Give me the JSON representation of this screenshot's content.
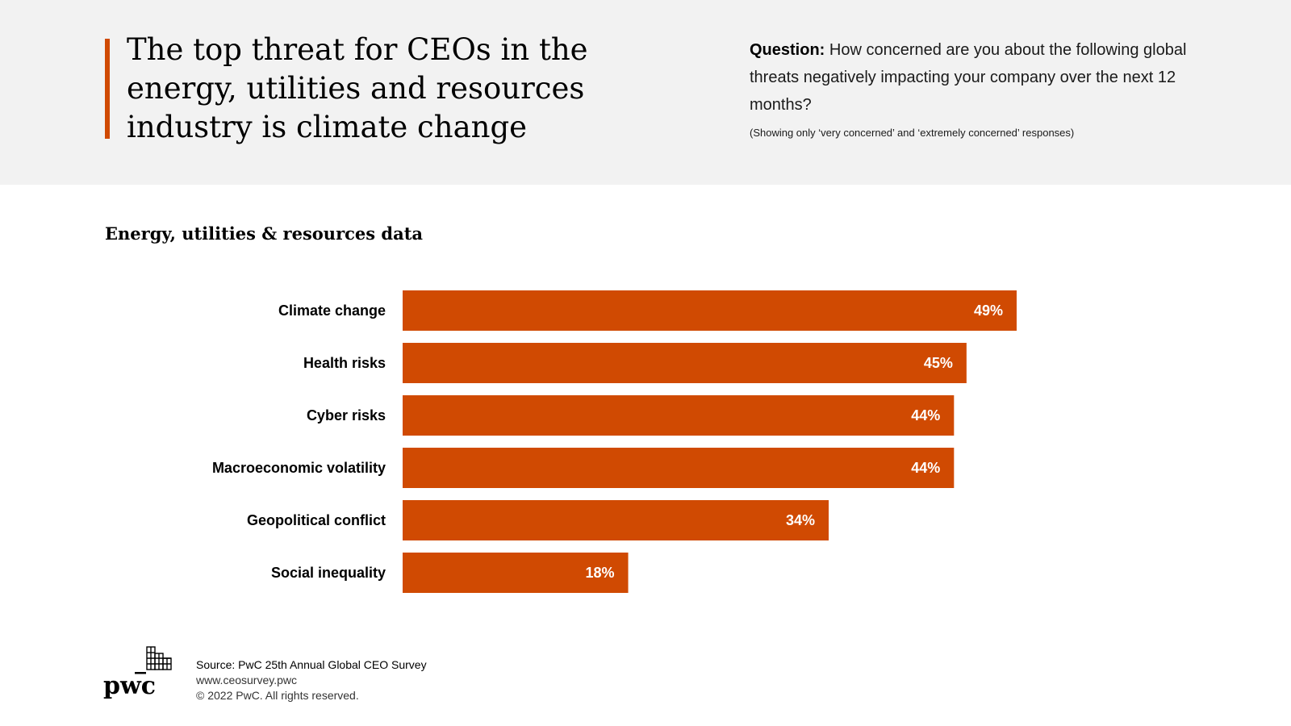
{
  "header": {
    "title": "The top threat for CEOs in the energy, utilities and resources industry is climate change",
    "question_label": "Question:",
    "question_text": "How concerned are you about the following global threats negatively impacting your company over the next 12 months?",
    "question_note": "(Showing only ‘very concerned’ and ‘extremely concerned’ responses)"
  },
  "colors": {
    "accent": "#d04a02",
    "bar": "#d04a02",
    "header_background": "#f2f2f2"
  },
  "chart_data": {
    "type": "bar",
    "orientation": "horizontal",
    "title": "Energy, utilities & resources data",
    "categories": [
      "Climate change",
      "Health risks",
      "Cyber risks",
      "Macroeconomic volatility",
      "Geopolitical conflict",
      "Social inequality"
    ],
    "values": [
      49,
      45,
      44,
      44,
      34,
      18
    ],
    "value_labels": [
      "49%",
      "45%",
      "44%",
      "44%",
      "34%",
      "18%"
    ],
    "unit": "%",
    "xlim": [
      0,
      100
    ],
    "grid": false,
    "legend": "none"
  },
  "footer": {
    "logo_text": "pwc",
    "source": "Source: PwC 25th Annual Global CEO Survey",
    "url": "www.ceosurvey.pwc",
    "copyright": "© 2022 PwC. All rights reserved."
  }
}
